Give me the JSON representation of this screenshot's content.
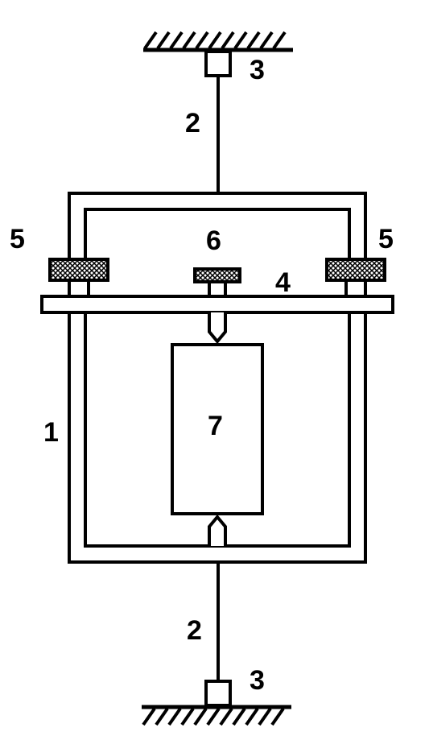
{
  "labels": {
    "frame": "1",
    "rod_top": "2",
    "rod_bottom": "2",
    "mount_top": "3",
    "mount_bottom": "3",
    "plate": "4",
    "screw_left": "5",
    "screw_right": "5",
    "screw_center": "6",
    "specimen": "7"
  }
}
